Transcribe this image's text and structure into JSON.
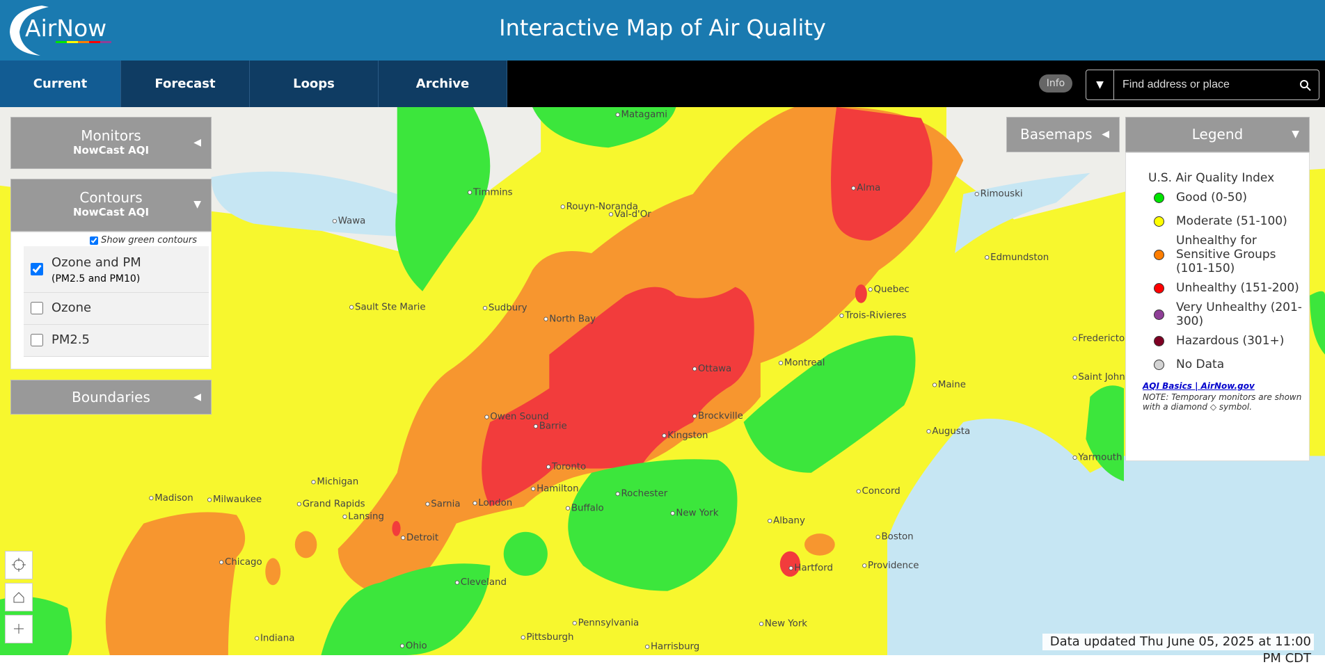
{
  "header": {
    "logo": "AirNow",
    "title": "Interactive Map of Air Quality"
  },
  "nav": {
    "tabs": [
      "Current",
      "Forecast",
      "Loops",
      "Archive"
    ],
    "info": "Info",
    "search_placeholder": "Find address or place"
  },
  "panels": {
    "monitors": {
      "title": "Monitors",
      "subtitle": "NowCast AQI"
    },
    "contours": {
      "title": "Contours",
      "subtitle": "NowCast AQI",
      "show_green": "Show green contours",
      "options": [
        {
          "label": "Ozone and PM",
          "sublabel": "(PM2.5 and PM10)",
          "checked": true
        },
        {
          "label": "Ozone",
          "checked": false
        },
        {
          "label": "PM2.5",
          "checked": false
        }
      ]
    },
    "boundaries": {
      "title": "Boundaries"
    },
    "basemaps": {
      "title": "Basemaps"
    }
  },
  "legend": {
    "title": "Legend",
    "heading": "U.S. Air Quality Index",
    "items": [
      {
        "label": "Good (0-50)",
        "color": "#00e400"
      },
      {
        "label": "Moderate (51-100)",
        "color": "#ffff00"
      },
      {
        "label": "Unhealthy for Sensitive Groups (101-150)",
        "color": "#ff7e00"
      },
      {
        "label": "Unhealthy (151-200)",
        "color": "#ff0000"
      },
      {
        "label": "Very Unhealthy (201-300)",
        "color": "#8f3f97"
      },
      {
        "label": "Hazardous (301+)",
        "color": "#7e0023"
      },
      {
        "label": "No Data",
        "color": "#d3d3d3"
      }
    ],
    "link": "AQI Basics | AirNow.gov",
    "note": "NOTE: Temporary monitors are shown with a diamond ◇ symbol."
  },
  "map": {
    "places": [
      "Matagami",
      "Timmins",
      "Wawa",
      "Rouyn-Noranda",
      "Val-d'Or",
      "Alma",
      "Rimouski",
      "Edmundston",
      "Quebec",
      "Trois-Rivieres",
      "Sault Ste Marie",
      "Sudbury",
      "North Bay",
      "Ottawa",
      "Montreal",
      "Fredericton",
      "Saint John",
      "Maine",
      "Augusta",
      "Owen Sound",
      "Barrie",
      "Brockville",
      "Kingston",
      "Toronto",
      "Hamilton",
      "London",
      "Sarnia",
      "Rochester",
      "Buffalo",
      "New York",
      "Michigan",
      "Madison",
      "Milwaukee",
      "Grand Rapids",
      "Lansing",
      "Detroit",
      "Chicago",
      "Albany",
      "Concord",
      "Boston",
      "Hartford",
      "Providence",
      "Cleveland",
      "Pennsylvania",
      "Pittsburgh",
      "Harrisburg",
      "Ohio",
      "Indiana",
      "New York",
      "Yarmouth"
    ]
  },
  "footer": {
    "updated": "Data updated Thu June 05, 2025 at 11:00 PM CDT"
  }
}
